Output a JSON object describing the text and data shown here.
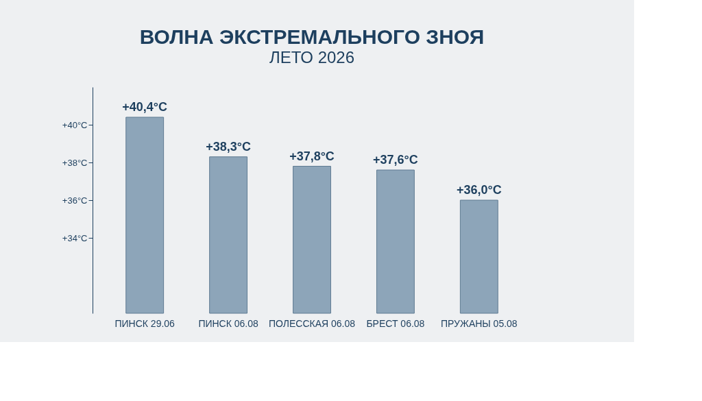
{
  "chart_data": {
    "type": "bar",
    "title": "ВОЛНА ЭКСТРЕМАЛЬНОГО ЗНОЯ",
    "subtitle": "ЛЕТО 2026",
    "categories": [
      "ПИНСК 29.06",
      "ПИНСК 06.08",
      "ПОЛЕССКАЯ 06.08",
      "БРЕСТ 06.08",
      "ПРУЖАНЫ 05.08"
    ],
    "values": [
      40.4,
      38.3,
      37.8,
      37.6,
      36.0
    ],
    "value_labels": [
      "+40,4°C",
      "+38,3°C",
      "+37,8°C",
      "+37,6°C",
      "+36,0°C"
    ],
    "color": "#8da5b9",
    "ylim": [
      30,
      42
    ],
    "yticks": [
      {
        "value": 34,
        "label": "+34°C"
      },
      {
        "value": 36,
        "label": "+36°C"
      },
      {
        "value": 38,
        "label": "+38°C"
      },
      {
        "value": 40,
        "label": "+40°C"
      }
    ],
    "grid": false
  }
}
